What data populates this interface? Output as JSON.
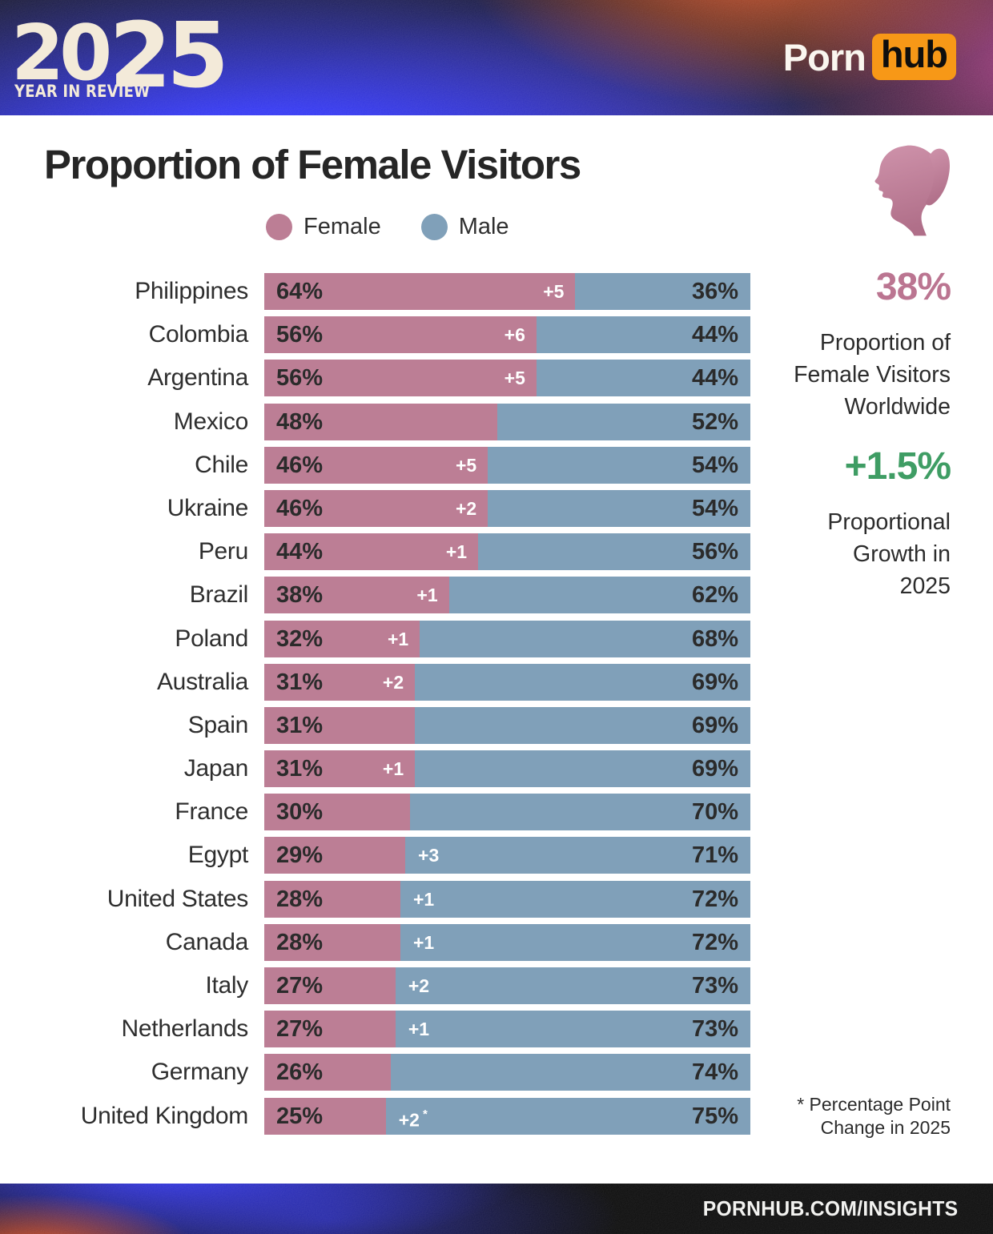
{
  "header": {
    "year_part1": "20",
    "year_part2": "25",
    "year_sub": "YEAR IN REVIEW",
    "brand_part1": "Porn",
    "brand_part2": "hub"
  },
  "title": "Proportion of Female Visitors",
  "legend": [
    {
      "label": "Female",
      "color": "#bc7e95"
    },
    {
      "label": "Male",
      "color": "#80a0b9"
    }
  ],
  "chart_data": {
    "type": "bar",
    "orientation": "horizontal",
    "stacked": true,
    "title": "Proportion of Female Visitors",
    "series_names": [
      "Female",
      "Male"
    ],
    "unit": "%",
    "xlim": [
      0,
      100
    ],
    "annotation_meaning": "Percentage point change in 2025",
    "rows": [
      {
        "country": "Philippines",
        "female": 64,
        "male": 36,
        "change": "+5",
        "change_note": ""
      },
      {
        "country": "Colombia",
        "female": 56,
        "male": 44,
        "change": "+6",
        "change_note": ""
      },
      {
        "country": "Argentina",
        "female": 56,
        "male": 44,
        "change": "+5",
        "change_note": ""
      },
      {
        "country": "Mexico",
        "female": 48,
        "male": 52,
        "change": "",
        "change_note": ""
      },
      {
        "country": "Chile",
        "female": 46,
        "male": 54,
        "change": "+5",
        "change_note": ""
      },
      {
        "country": "Ukraine",
        "female": 46,
        "male": 54,
        "change": "+2",
        "change_note": ""
      },
      {
        "country": "Peru",
        "female": 44,
        "male": 56,
        "change": "+1",
        "change_note": ""
      },
      {
        "country": "Brazil",
        "female": 38,
        "male": 62,
        "change": "+1",
        "change_note": ""
      },
      {
        "country": "Poland",
        "female": 32,
        "male": 68,
        "change": "+1",
        "change_note": ""
      },
      {
        "country": "Australia",
        "female": 31,
        "male": 69,
        "change": "+2",
        "change_note": ""
      },
      {
        "country": "Spain",
        "female": 31,
        "male": 69,
        "change": "",
        "change_note": ""
      },
      {
        "country": "Japan",
        "female": 31,
        "male": 69,
        "change": "+1",
        "change_note": ""
      },
      {
        "country": "France",
        "female": 30,
        "male": 70,
        "change": "",
        "change_note": ""
      },
      {
        "country": "Egypt",
        "female": 29,
        "male": 71,
        "change": "+3",
        "change_note": ""
      },
      {
        "country": "United States",
        "female": 28,
        "male": 72,
        "change": "+1",
        "change_note": ""
      },
      {
        "country": "Canada",
        "female": 28,
        "male": 72,
        "change": "+1",
        "change_note": ""
      },
      {
        "country": "Italy",
        "female": 27,
        "male": 73,
        "change": "+2",
        "change_note": ""
      },
      {
        "country": "Netherlands",
        "female": 27,
        "male": 73,
        "change": "+1",
        "change_note": ""
      },
      {
        "country": "Germany",
        "female": 26,
        "male": 74,
        "change": "",
        "change_note": ""
      },
      {
        "country": "United Kingdom",
        "female": 25,
        "male": 75,
        "change": "+2",
        "change_note": "*"
      }
    ]
  },
  "sidebar": {
    "stat1_value": "38%",
    "stat1_label": [
      "Proportion of",
      "Female Visitors",
      "Worldwide"
    ],
    "stat2_value": "+1.5%",
    "stat2_label": [
      "Proportional",
      "Growth in",
      "2025"
    ],
    "footnote": [
      "* Percentage Point",
      "Change in 2025"
    ]
  },
  "footer": {
    "url": "PORNHUB.COM/INSIGHTS"
  },
  "colors": {
    "female": "#bc7e95",
    "male": "#80a0b9",
    "accent_pink": "#bb7591",
    "accent_green": "#3f9d64",
    "brand_orange": "#f79817",
    "header_blue": "#2b2ff2",
    "logo_cream": "#f3ead9"
  }
}
